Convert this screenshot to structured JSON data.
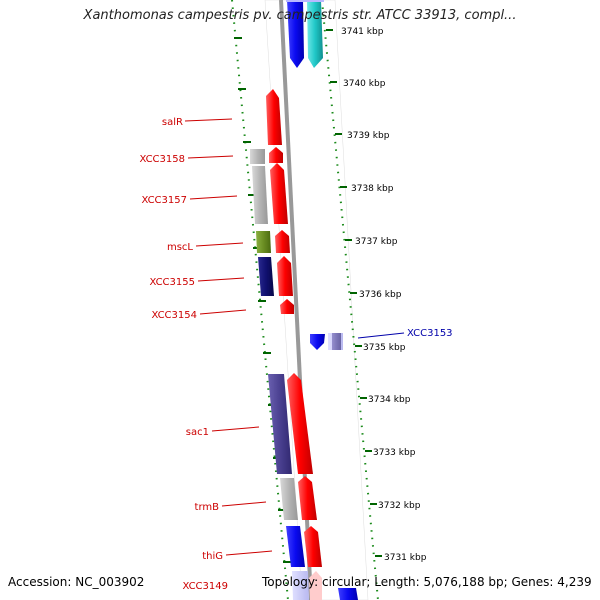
{
  "title": "Xanthomonas campestris pv. campestris str. ATCC 33913, compl...",
  "colors": {
    "forward_gene": "#ff1010",
    "gray_gene": "#b0b0b0",
    "navy_gene": "#101070",
    "olive_gene": "#6b8e23",
    "blue_gene": "#1010ee",
    "cyan_gene": "#20c8c8",
    "purple_gene": "#4a4090",
    "label_red": "#cc0000",
    "label_blue": "#0000aa",
    "tick_green": "#006400"
  },
  "scale_labels": [
    "3741 kbp",
    "3740 kbp",
    "3739 kbp",
    "3738 kbp",
    "3737 kbp",
    "3736 kbp",
    "3735 kbp",
    "3734 kbp",
    "3733 kbp",
    "3732 kbp",
    "3731 kbp"
  ],
  "gene_labels": [
    {
      "text": "salR",
      "side": "left"
    },
    {
      "text": "XCC3158",
      "side": "left"
    },
    {
      "text": "XCC3157",
      "side": "left"
    },
    {
      "text": "mscL",
      "side": "left"
    },
    {
      "text": "XCC3155",
      "side": "left"
    },
    {
      "text": "XCC3154",
      "side": "left"
    },
    {
      "text": "XCC3153",
      "side": "right"
    },
    {
      "text": "sac1",
      "side": "left"
    },
    {
      "text": "trmB",
      "side": "left"
    },
    {
      "text": "thiG",
      "side": "left"
    },
    {
      "text": "XCC3149",
      "side": "left"
    }
  ],
  "footer": {
    "accession": "Accession: NC_003902",
    "info": "Topology: circular; Length: 5,076,188 bp; Genes: 4,239"
  }
}
